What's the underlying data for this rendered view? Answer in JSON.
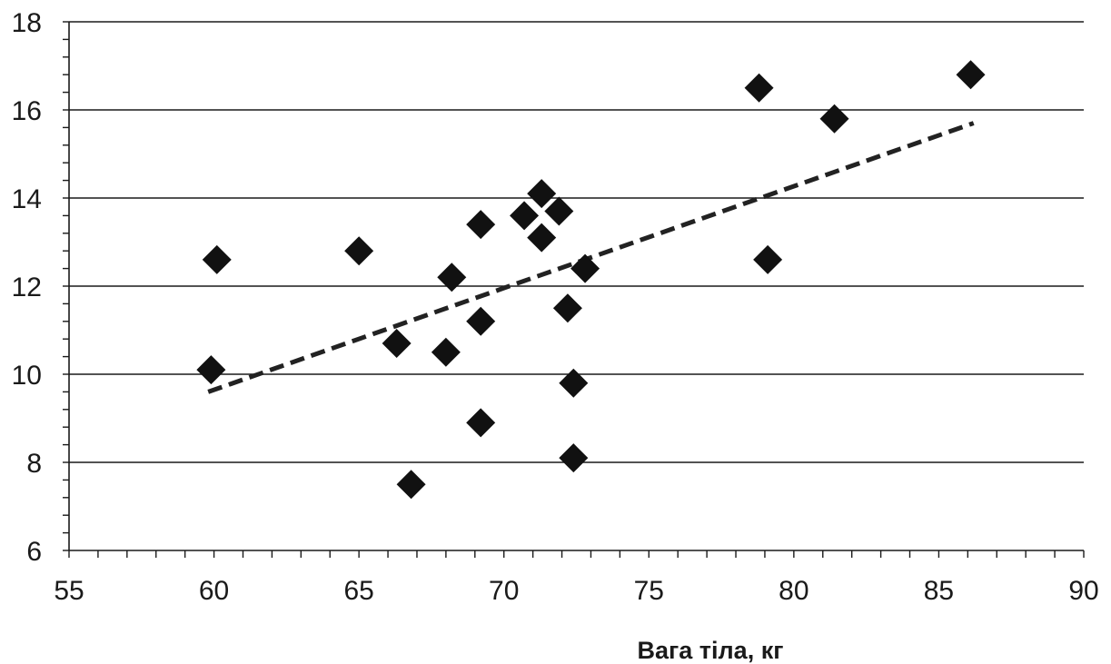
{
  "chart_data": {
    "type": "scatter",
    "title": "",
    "xlabel": "Вага тіла, кг",
    "ylabel": "",
    "xlim": [
      55,
      90
    ],
    "ylim": [
      6,
      18
    ],
    "x_ticks": [
      55,
      60,
      65,
      70,
      75,
      80,
      85,
      90
    ],
    "y_ticks": [
      6,
      8,
      10,
      12,
      14,
      16,
      18
    ],
    "x_tick_labels": [
      "55",
      "60",
      "65",
      "70",
      "75",
      "80",
      "85",
      "90"
    ],
    "y_tick_labels": [
      "6",
      "8",
      "10",
      "12",
      "14",
      "16",
      "18"
    ],
    "grid": {
      "horizontal": true,
      "vertical": false
    },
    "legend": "none",
    "marker": "diamond",
    "marker_color": "#111111",
    "points": [
      {
        "x": 60.1,
        "y": 12.6
      },
      {
        "x": 59.9,
        "y": 10.1
      },
      {
        "x": 65.0,
        "y": 12.8
      },
      {
        "x": 66.3,
        "y": 10.7
      },
      {
        "x": 66.8,
        "y": 7.5
      },
      {
        "x": 68.0,
        "y": 10.5
      },
      {
        "x": 68.2,
        "y": 12.2
      },
      {
        "x": 69.2,
        "y": 13.4
      },
      {
        "x": 69.2,
        "y": 11.2
      },
      {
        "x": 69.2,
        "y": 8.9
      },
      {
        "x": 70.7,
        "y": 13.6
      },
      {
        "x": 71.3,
        "y": 14.1
      },
      {
        "x": 71.3,
        "y": 13.1
      },
      {
        "x": 71.9,
        "y": 13.7
      },
      {
        "x": 72.2,
        "y": 11.5
      },
      {
        "x": 72.4,
        "y": 9.8
      },
      {
        "x": 72.4,
        "y": 8.1
      },
      {
        "x": 72.8,
        "y": 12.4
      },
      {
        "x": 78.8,
        "y": 16.5
      },
      {
        "x": 79.1,
        "y": 12.6
      },
      {
        "x": 81.4,
        "y": 15.8
      },
      {
        "x": 86.1,
        "y": 16.8
      }
    ],
    "trendline": {
      "style": "dashed",
      "color": "#222222",
      "x": [
        59.8,
        86.2
      ],
      "y": [
        9.6,
        15.7
      ]
    }
  }
}
